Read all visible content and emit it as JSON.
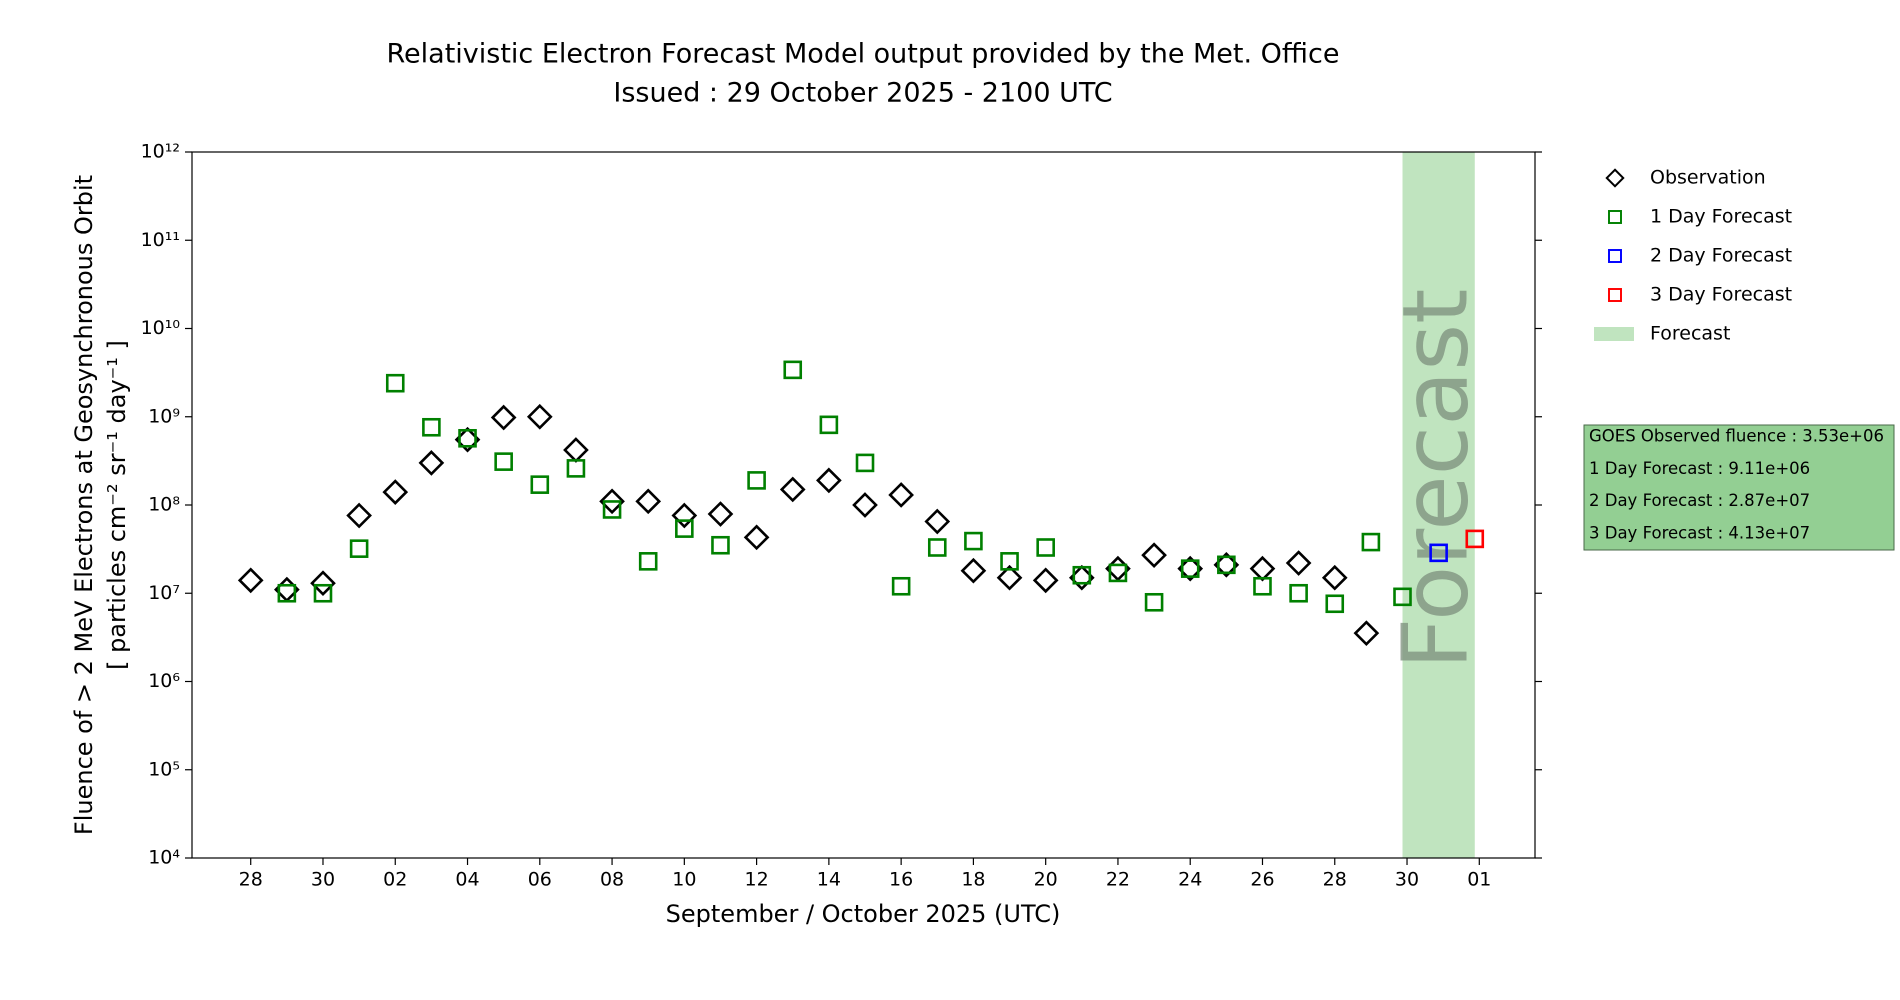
{
  "chart_data": {
    "type": "scatter",
    "title": "Relativistic Electron Forecast Model output provided by the Met. Office",
    "subtitle": "Issued : 29 October 2025 - 2100 UTC",
    "x_label": "September / October 2025 (UTC)",
    "y_label": [
      "Fluence of > 2 MeV Electrons at Geosynchronous Orbit",
      "[ particles cm⁻² sr⁻¹ day⁻¹ ]"
    ],
    "log_y": true,
    "xlim": [
      "2025-09-26T09:00",
      "2025-11-02T13:00"
    ],
    "ylim": [
      10000.0,
      1000000000000.0
    ],
    "xticks": [
      {
        "value": "2025-09-28",
        "label": "28"
      },
      {
        "value": "2025-09-30",
        "label": "30"
      },
      {
        "value": "2025-10-02",
        "label": "02"
      },
      {
        "value": "2025-10-04",
        "label": "04"
      },
      {
        "value": "2025-10-06",
        "label": "06"
      },
      {
        "value": "2025-10-08",
        "label": "08"
      },
      {
        "value": "2025-10-10",
        "label": "10"
      },
      {
        "value": "2025-10-12",
        "label": "12"
      },
      {
        "value": "2025-10-14",
        "label": "14"
      },
      {
        "value": "2025-10-16",
        "label": "16"
      },
      {
        "value": "2025-10-18",
        "label": "18"
      },
      {
        "value": "2025-10-20",
        "label": "20"
      },
      {
        "value": "2025-10-22",
        "label": "22"
      },
      {
        "value": "2025-10-24",
        "label": "24"
      },
      {
        "value": "2025-10-26",
        "label": "26"
      },
      {
        "value": "2025-10-28",
        "label": "28"
      },
      {
        "value": "2025-10-30",
        "label": "30"
      },
      {
        "value": "2025-11-01",
        "label": "01"
      }
    ],
    "yticks": [
      {
        "value": 10000.0,
        "label": "10⁴"
      },
      {
        "value": 100000.0,
        "label": "10⁵"
      },
      {
        "value": 1000000.0,
        "label": "10⁶"
      },
      {
        "value": 10000000.0,
        "label": "10⁷"
      },
      {
        "value": 100000000.0,
        "label": "10⁸"
      },
      {
        "value": 1000000000.0,
        "label": "10⁹"
      },
      {
        "value": 10000000000.0,
        "label": "10¹⁰"
      },
      {
        "value": 100000000000.0,
        "label": "10¹¹"
      },
      {
        "value": 1000000000000.0,
        "label": "10¹²"
      }
    ],
    "series": [
      {
        "name": "Observation",
        "color": "#000000",
        "marker": "diamond",
        "x": [
          "2025-09-28",
          "2025-09-29",
          "2025-09-30",
          "2025-10-01",
          "2025-10-02",
          "2025-10-03",
          "2025-10-04",
          "2025-10-05",
          "2025-10-06",
          "2025-10-07",
          "2025-10-08",
          "2025-10-09",
          "2025-10-10",
          "2025-10-11",
          "2025-10-12",
          "2025-10-13",
          "2025-10-14",
          "2025-10-15",
          "2025-10-16",
          "2025-10-17",
          "2025-10-18",
          "2025-10-19",
          "2025-10-20",
          "2025-10-21",
          "2025-10-22",
          "2025-10-23",
          "2025-10-24",
          "2025-10-25",
          "2025-10-26",
          "2025-10-27",
          "2025-10-28",
          "2025-10-28T21:00"
        ],
        "values": [
          14000000.0,
          11000000.0,
          13000000.0,
          76000000.0,
          140000000.0,
          300000000.0,
          550000000.0,
          980000000.0,
          1000000000.0,
          420000000.0,
          110000000.0,
          110000000.0,
          76000000.0,
          79000000.0,
          43000000.0,
          150000000.0,
          190000000.0,
          100000000.0,
          130000000.0,
          65000000.0,
          18000000.0,
          15000000.0,
          14000000.0,
          15000000.0,
          19000000.0,
          27000000.0,
          19000000.0,
          21000000.0,
          19000000.0,
          22000000.0,
          15000000.0,
          3530000.0
        ]
      },
      {
        "name": "1 Day Forecast",
        "color": "#008000",
        "marker": "square",
        "x": [
          "2025-09-29",
          "2025-09-30",
          "2025-10-01",
          "2025-10-02",
          "2025-10-03",
          "2025-10-04",
          "2025-10-05",
          "2025-10-06",
          "2025-10-07",
          "2025-10-08",
          "2025-10-09",
          "2025-10-10",
          "2025-10-11",
          "2025-10-12",
          "2025-10-13",
          "2025-10-14",
          "2025-10-15",
          "2025-10-16",
          "2025-10-17",
          "2025-10-18",
          "2025-10-19",
          "2025-10-20",
          "2025-10-21",
          "2025-10-22",
          "2025-10-23",
          "2025-10-24",
          "2025-10-25",
          "2025-10-26",
          "2025-10-27",
          "2025-10-28",
          "2025-10-29",
          "2025-10-29T21:00"
        ],
        "values": [
          10000000.0,
          10000000.0,
          32000000.0,
          2400000000.0,
          760000000.0,
          570000000.0,
          310000000.0,
          170000000.0,
          260000000.0,
          89000000.0,
          23000000.0,
          54000000.0,
          35000000.0,
          190000000.0,
          3400000000.0,
          810000000.0,
          300000000.0,
          12000000.0,
          33000000.0,
          39000000.0,
          23000000.0,
          33000000.0,
          16000000.0,
          17000000.0,
          7900000.0,
          19000000.0,
          21000000.0,
          12000000.0,
          10000000.0,
          7600000.0,
          38000000.0,
          9110000.0
        ]
      },
      {
        "name": "2 Day Forecast",
        "color": "#0000ff",
        "marker": "square",
        "x": [
          "2025-10-30T21:00"
        ],
        "values": [
          28700000.0
        ]
      },
      {
        "name": "3 Day Forecast",
        "color": "#ff0000",
        "marker": "square",
        "x": [
          "2025-10-31T21:00"
        ],
        "values": [
          41300000.0
        ]
      }
    ],
    "forecast_region": {
      "name": "Forecast",
      "color": "#c0e4bf",
      "start": "2025-10-29T21:00",
      "end": "2025-10-31T21:00"
    },
    "info_box": [
      "GOES Observed fluence : 3.53e+06",
      "1 Day Forecast : 9.11e+06",
      "2 Day Forecast : 2.87e+07",
      "3 Day Forecast : 4.13e+07"
    ]
  }
}
